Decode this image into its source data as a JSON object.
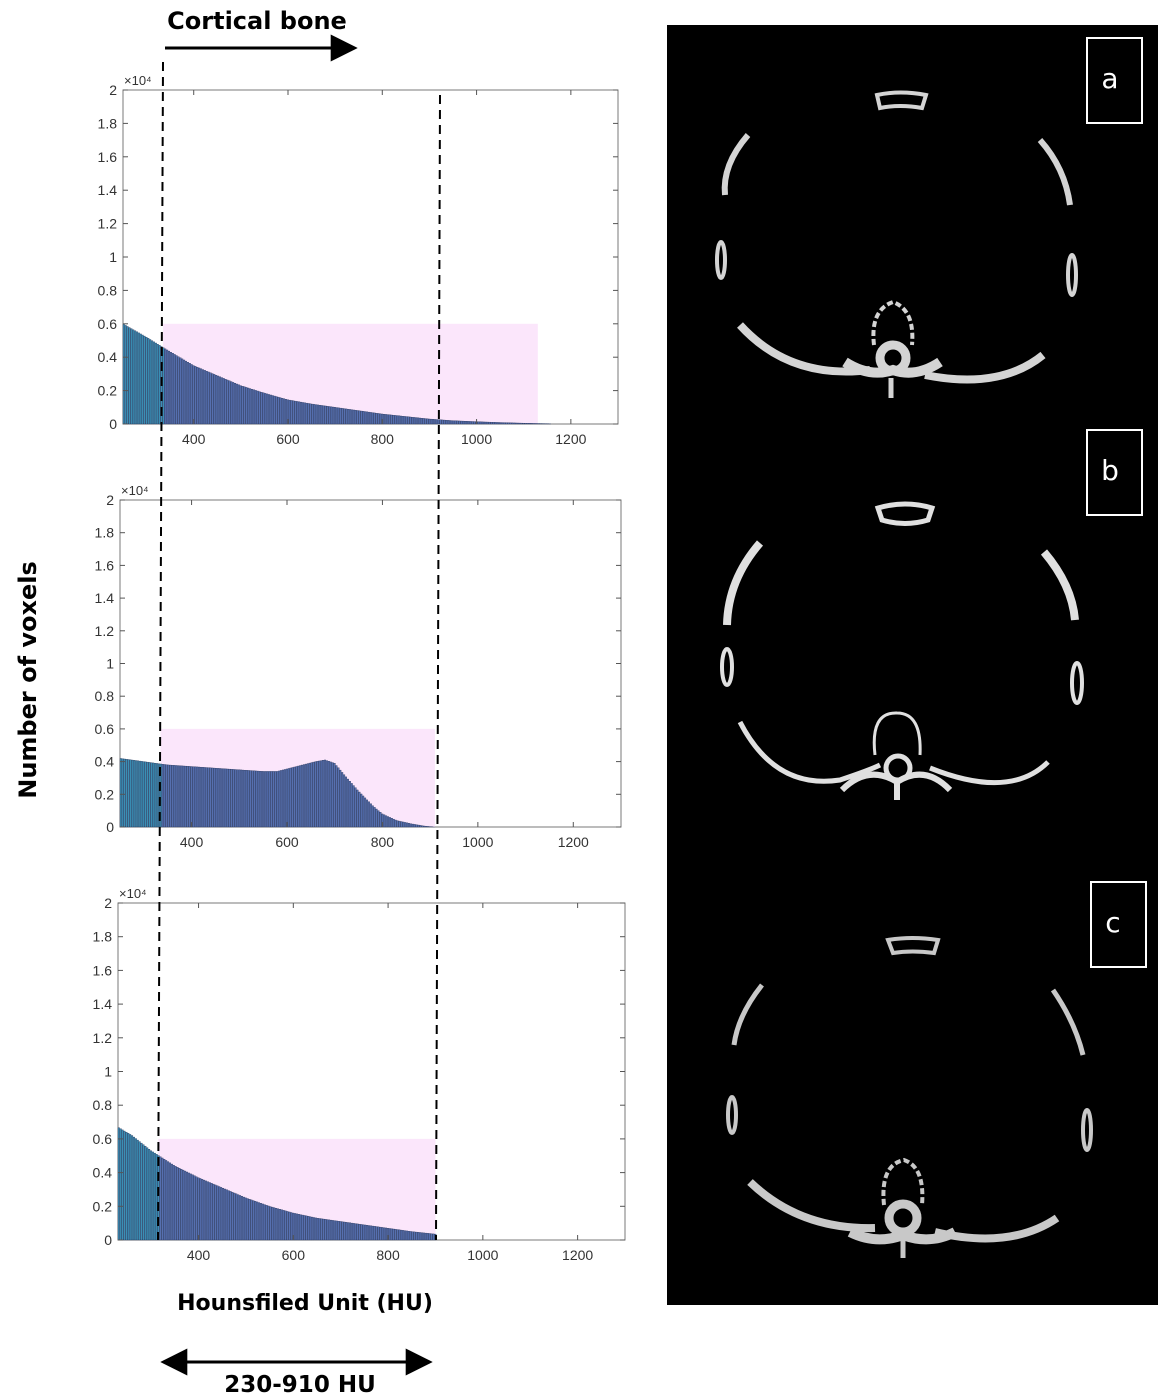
{
  "annotations": {
    "top_label": "Cortical bone",
    "ylabel": "Number of voxels",
    "xlabel": "Hounsfiled Unit (HU)",
    "range_label": "230-910 HU"
  },
  "panels": [
    {
      "letter": "a"
    },
    {
      "letter": "b"
    },
    {
      "letter": "c"
    }
  ],
  "chart_data": [
    {
      "type": "bar",
      "panel": "a",
      "title": "",
      "xlabel": "",
      "ylabel": "",
      "y_exponent_label": "×10⁴",
      "xlim": [
        250,
        1300
      ],
      "ylim": [
        0,
        2
      ],
      "xticks": [
        400,
        600,
        800,
        1000,
        1200
      ],
      "yticks": [
        0,
        0.2,
        0.4,
        0.6,
        0.8,
        1,
        1.2,
        1.4,
        1.6,
        1.8,
        2
      ],
      "ytick_labels": [
        "0",
        "0.2",
        "0.4",
        "0.6",
        "0.8",
        "1",
        "1.2",
        "1.4",
        "1.6",
        "1.8",
        "2"
      ],
      "bin_width": 4,
      "highlight": {
        "x": [
          335,
          1130
        ],
        "y": [
          0,
          0.6
        ],
        "color": "#fbe6fb"
      },
      "bar_color": "#5670b0",
      "bar_color_left": "#3b8fb5",
      "left_color_until": 335,
      "envelope": [
        [
          250,
          0.6
        ],
        [
          300,
          0.52
        ],
        [
          340,
          0.45
        ],
        [
          400,
          0.35
        ],
        [
          450,
          0.29
        ],
        [
          500,
          0.23
        ],
        [
          550,
          0.185
        ],
        [
          600,
          0.145
        ],
        [
          650,
          0.12
        ],
        [
          700,
          0.1
        ],
        [
          750,
          0.08
        ],
        [
          800,
          0.06
        ],
        [
          850,
          0.045
        ],
        [
          900,
          0.03
        ],
        [
          950,
          0.02
        ],
        [
          1000,
          0.014
        ],
        [
          1050,
          0.009
        ],
        [
          1100,
          0.005
        ],
        [
          1150,
          0.002
        ],
        [
          1160,
          0.0
        ]
      ]
    },
    {
      "type": "bar",
      "panel": "b",
      "title": "",
      "xlabel": "",
      "ylabel": "",
      "y_exponent_label": "×10⁴",
      "xlim": [
        250,
        1300
      ],
      "ylim": [
        0,
        2
      ],
      "xticks": [
        400,
        600,
        800,
        1000,
        1200
      ],
      "yticks": [
        0,
        0.2,
        0.4,
        0.6,
        0.8,
        1,
        1.2,
        1.4,
        1.6,
        1.8,
        2
      ],
      "ytick_labels": [
        "0",
        "0.2",
        "0.4",
        "0.6",
        "0.8",
        "1",
        "1.2",
        "1.4",
        "1.6",
        "1.8",
        "2"
      ],
      "bin_width": 4,
      "highlight": {
        "x": [
          335,
          910
        ],
        "y": [
          0,
          0.6
        ],
        "color": "#fbe6fb"
      },
      "bar_color": "#5670b0",
      "bar_color_left": "#3b8fb5",
      "left_color_until": 335,
      "envelope": [
        [
          250,
          0.42
        ],
        [
          300,
          0.4
        ],
        [
          350,
          0.38
        ],
        [
          400,
          0.37
        ],
        [
          450,
          0.36
        ],
        [
          500,
          0.35
        ],
        [
          550,
          0.34
        ],
        [
          580,
          0.34
        ],
        [
          620,
          0.37
        ],
        [
          660,
          0.4
        ],
        [
          680,
          0.41
        ],
        [
          700,
          0.39
        ],
        [
          720,
          0.32
        ],
        [
          750,
          0.22
        ],
        [
          780,
          0.13
        ],
        [
          800,
          0.08
        ],
        [
          830,
          0.04
        ],
        [
          860,
          0.02
        ],
        [
          890,
          0.005
        ],
        [
          910,
          0.0
        ]
      ]
    },
    {
      "type": "bar",
      "panel": "c",
      "title": "",
      "xlabel": "",
      "ylabel": "",
      "y_exponent_label": "×10⁴",
      "xlim": [
        230,
        1300
      ],
      "ylim": [
        0,
        2
      ],
      "xticks": [
        400,
        600,
        800,
        1000,
        1200
      ],
      "yticks": [
        0,
        0.2,
        0.4,
        0.6,
        0.8,
        1,
        1.2,
        1.4,
        1.6,
        1.8,
        2
      ],
      "ytick_labels": [
        "0",
        "0.2",
        "0.4",
        "0.6",
        "0.8",
        "1",
        "1.2",
        "1.4",
        "1.6",
        "1.8",
        "2"
      ],
      "bin_width": 4,
      "highlight": {
        "x": [
          315,
          900
        ],
        "y": [
          0,
          0.6
        ],
        "color": "#fbe6fb"
      },
      "bar_color": "#5670b0",
      "bar_color_left": "#3b8fb5",
      "left_color_until": 315,
      "envelope": [
        [
          230,
          0.67
        ],
        [
          260,
          0.62
        ],
        [
          300,
          0.53
        ],
        [
          350,
          0.44
        ],
        [
          400,
          0.37
        ],
        [
          450,
          0.31
        ],
        [
          500,
          0.25
        ],
        [
          550,
          0.2
        ],
        [
          600,
          0.16
        ],
        [
          650,
          0.13
        ],
        [
          700,
          0.11
        ],
        [
          750,
          0.09
        ],
        [
          800,
          0.07
        ],
        [
          850,
          0.05
        ],
        [
          900,
          0.035
        ]
      ]
    }
  ]
}
